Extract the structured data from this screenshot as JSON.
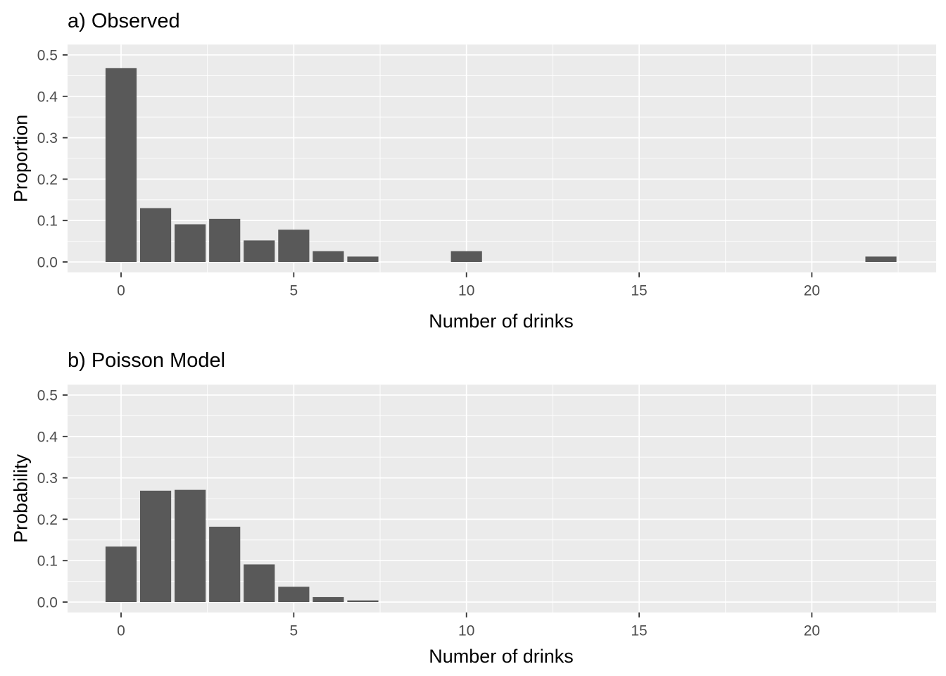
{
  "figure": {
    "background": "#FFFFFF"
  },
  "chart_data": [
    {
      "type": "bar",
      "title": "a) Observed",
      "xlabel": "Number of drinks",
      "ylabel": "Proportion",
      "x": [
        0,
        1,
        2,
        3,
        4,
        5,
        6,
        7,
        10,
        22
      ],
      "values": [
        0.468,
        0.13,
        0.091,
        0.104,
        0.052,
        0.078,
        0.026,
        0.013,
        0.026,
        0.013
      ],
      "bar_width": 0.9,
      "xlim": [
        -1.55,
        23.6
      ],
      "ylim": [
        -0.025,
        0.525
      ],
      "x_ticks": [
        0,
        5,
        10,
        15,
        20
      ],
      "x_tick_labels": [
        "0",
        "5",
        "10",
        "15",
        "20"
      ],
      "x_minor": [
        2.5,
        7.5,
        12.5,
        17.5,
        22.5
      ],
      "y_ticks": [
        0,
        0.1,
        0.2,
        0.3,
        0.4,
        0.5
      ],
      "y_tick_labels": [
        "0.0",
        "0.1",
        "0.2",
        "0.3",
        "0.4",
        "0.5"
      ],
      "y_minor": [
        0.05,
        0.15,
        0.25,
        0.35,
        0.45
      ],
      "grid": true,
      "legend": "none",
      "colors": {
        "bar": "#595959",
        "panel_bg": "#EBEBEB",
        "grid": "#FFFFFF",
        "tick_text": "#4D4D4D",
        "tick_mark": "#333333",
        "text": "#000000"
      }
    },
    {
      "type": "bar",
      "title": "b) Poisson Model",
      "xlabel": "Number of drinks",
      "ylabel": "Probability",
      "x": [
        0,
        1,
        2,
        3,
        4,
        5,
        6,
        7
      ],
      "values": [
        0.134,
        0.269,
        0.271,
        0.182,
        0.091,
        0.037,
        0.012,
        0.004
      ],
      "bar_width": 0.9,
      "xlim": [
        -1.55,
        23.6
      ],
      "ylim": [
        -0.025,
        0.525
      ],
      "x_ticks": [
        0,
        5,
        10,
        15,
        20
      ],
      "x_tick_labels": [
        "0",
        "5",
        "10",
        "15",
        "20"
      ],
      "x_minor": [
        2.5,
        7.5,
        12.5,
        17.5,
        22.5
      ],
      "y_ticks": [
        0,
        0.1,
        0.2,
        0.3,
        0.4,
        0.5
      ],
      "y_tick_labels": [
        "0.0",
        "0.1",
        "0.2",
        "0.3",
        "0.4",
        "0.5"
      ],
      "y_minor": [
        0.05,
        0.15,
        0.25,
        0.35,
        0.45
      ],
      "grid": true,
      "legend": "none",
      "colors": {
        "bar": "#595959",
        "panel_bg": "#EBEBEB",
        "grid": "#FFFFFF",
        "tick_text": "#4D4D4D",
        "tick_mark": "#333333",
        "text": "#000000"
      }
    }
  ]
}
